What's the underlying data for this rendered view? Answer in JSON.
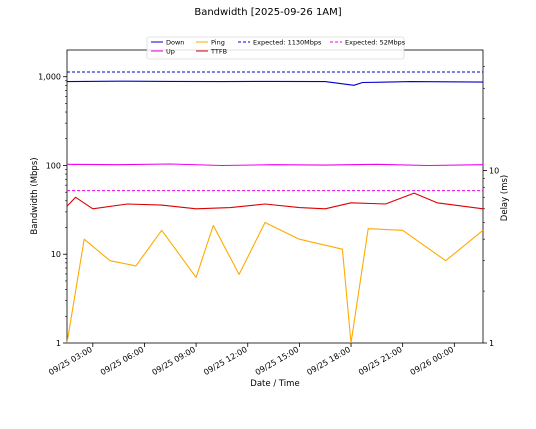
{
  "chart_data": {
    "type": "line",
    "title": "Bandwidth [2025-09-26 1AM]",
    "xlabel": "Date / Time",
    "ylabel_left": "Bandwidth (Mbps)",
    "ylabel_right": "Delay (ms)",
    "yscale_left": "log",
    "yscale_right": "log",
    "ylim_left": [
      1,
      2000
    ],
    "ylim_right": [
      1,
      50
    ],
    "xlim": [
      "2025-09-25 01:30",
      "2025-09-26 01:40"
    ],
    "x_ticks": [
      "09/25 03:00",
      "09/25 06:00",
      "09/25 09:00",
      "09/25 12:00",
      "09/25 15:00",
      "09/25 18:00",
      "09/25 21:00",
      "09/26 00:00"
    ],
    "y_ticks_left": [
      "1",
      "10",
      "100",
      "1,000"
    ],
    "y_ticks_right": [
      "1",
      "10"
    ],
    "grid": false,
    "legend_position": "top-center",
    "colors": {
      "down": "#0000cc",
      "up": "#ee00ee",
      "ping": "#ffaa00",
      "ttfb": "#dd0000"
    },
    "series": [
      {
        "name": "Down",
        "axis": "left",
        "style": "solid",
        "color": "#0000cc",
        "x": [
          "2025-09-25 01:30",
          "2025-09-25 04:30",
          "2025-09-25 07:30",
          "2025-09-25 10:30",
          "2025-09-25 13:30",
          "2025-09-25 16:30",
          "2025-09-25 18:10",
          "2025-09-25 18:40",
          "2025-09-25 21:30",
          "2025-09-26 01:40"
        ],
        "values": [
          880,
          890,
          885,
          880,
          885,
          880,
          800,
          860,
          880,
          870
        ]
      },
      {
        "name": "Up",
        "axis": "left",
        "style": "solid",
        "color": "#ee00ee",
        "x": [
          "2025-09-25 01:30",
          "2025-09-25 04:30",
          "2025-09-25 07:30",
          "2025-09-25 10:30",
          "2025-09-25 13:30",
          "2025-09-25 16:30",
          "2025-09-25 19:30",
          "2025-09-25 22:30",
          "2025-09-26 01:40"
        ],
        "values": [
          103,
          102,
          104,
          100,
          102,
          101,
          103,
          100,
          102
        ]
      },
      {
        "name": "Expected: 1130Mbps",
        "axis": "left",
        "style": "dashed",
        "color": "#0000cc",
        "value": 1130
      },
      {
        "name": "Expected: 52Mbps",
        "axis": "left",
        "style": "dashed",
        "color": "#ee00ee",
        "value": 52
      },
      {
        "name": "TTFB",
        "axis": "right",
        "style": "solid",
        "color": "#dd0000",
        "x": [
          "2025-09-25 01:30",
          "2025-09-25 02:00",
          "2025-09-25 03:00",
          "2025-09-25 05:00",
          "2025-09-25 07:00",
          "2025-09-25 09:00",
          "2025-09-25 11:00",
          "2025-09-25 13:00",
          "2025-09-25 15:00",
          "2025-09-25 16:30",
          "2025-09-25 18:00",
          "2025-09-25 20:00",
          "2025-09-25 21:40",
          "2025-09-25 23:00",
          "2025-09-26 01:40"
        ],
        "values": [
          6.2,
          7.0,
          6.0,
          6.4,
          6.3,
          6.0,
          6.1,
          6.4,
          6.1,
          6.0,
          6.5,
          6.4,
          7.4,
          6.5,
          6.0
        ]
      },
      {
        "name": "Ping",
        "axis": "right",
        "style": "solid",
        "color": "#ffaa00",
        "x": [
          "2025-09-25 01:30",
          "2025-09-25 02:30",
          "2025-09-25 04:00",
          "2025-09-25 05:30",
          "2025-09-25 07:00",
          "2025-09-25 09:00",
          "2025-09-25 10:00",
          "2025-09-25 11:30",
          "2025-09-25 13:00",
          "2025-09-25 15:00",
          "2025-09-25 17:30",
          "2025-09-25 18:00",
          "2025-09-25 19:00",
          "2025-09-25 21:00",
          "2025-09-25 23:30",
          "2025-09-26 01:40"
        ],
        "values": [
          1.0,
          4.0,
          3.0,
          2.8,
          4.5,
          2.4,
          4.8,
          2.5,
          5.0,
          4.0,
          3.5,
          1.0,
          4.6,
          4.5,
          3.0,
          4.5
        ]
      }
    ]
  }
}
